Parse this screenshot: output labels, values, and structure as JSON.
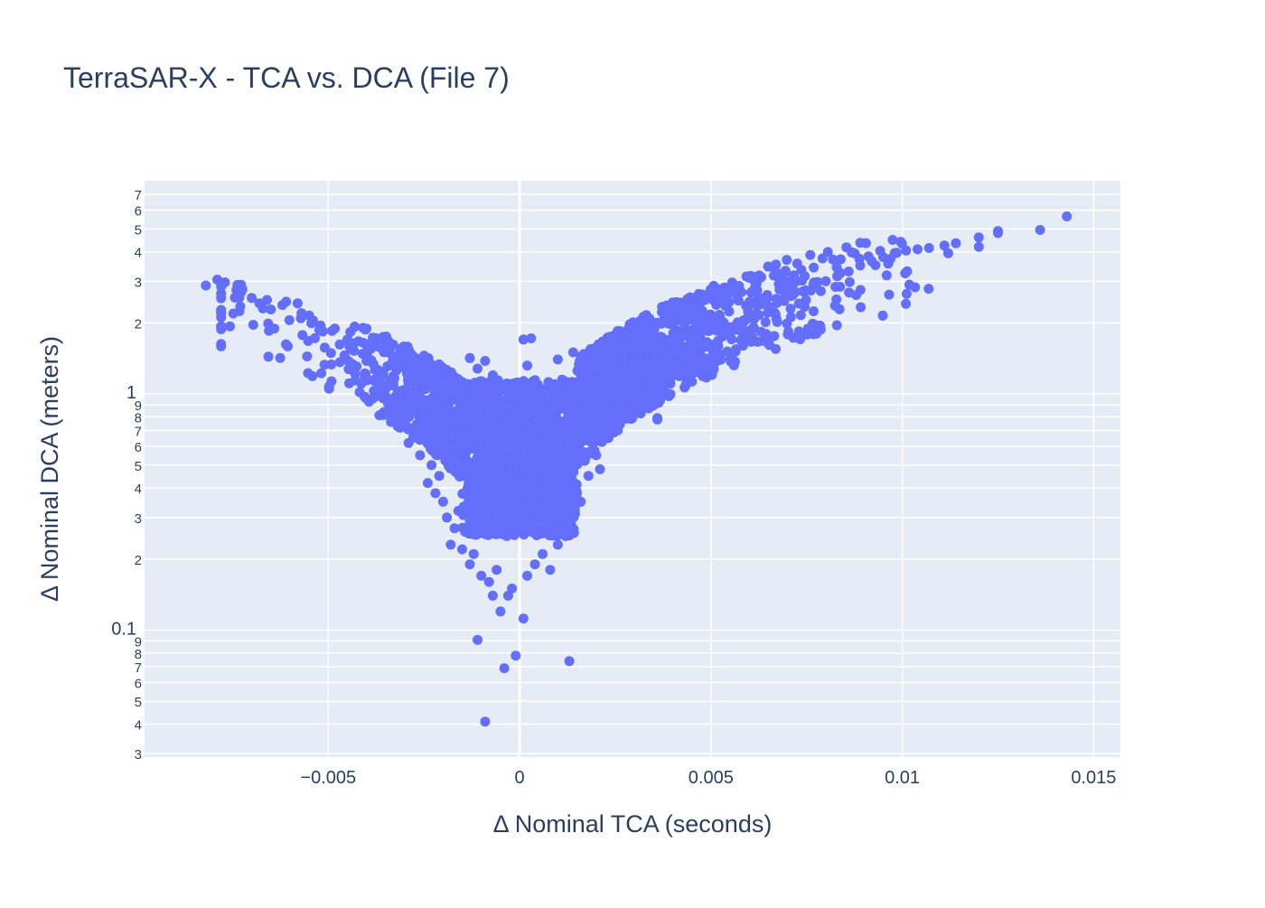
{
  "chart_data": {
    "type": "scatter",
    "title": "TerraSAR-X - TCA vs. DCA (File 7)",
    "xlabel": "Δ Nominal TCA (seconds)",
    "ylabel": "Δ Nominal DCA (meters)",
    "x_scale": "linear",
    "y_scale": "log",
    "xlim": [
      -0.0098,
      0.0157
    ],
    "ylim": [
      0.029,
      8.0
    ],
    "x_ticks": [
      {
        "value": -0.005,
        "label": "−0.005"
      },
      {
        "value": 0,
        "label": "0"
      },
      {
        "value": 0.005,
        "label": "0.005"
      },
      {
        "value": 0.01,
        "label": "0.01"
      },
      {
        "value": 0.015,
        "label": "0.015"
      }
    ],
    "y_major_ticks": [
      {
        "value": 0.1,
        "label": "0.1"
      },
      {
        "value": 1,
        "label": "1"
      }
    ],
    "y_minor_ticks": [
      {
        "value": 0.03,
        "label": "3"
      },
      {
        "value": 0.04,
        "label": "4"
      },
      {
        "value": 0.05,
        "label": "5"
      },
      {
        "value": 0.06,
        "label": "6"
      },
      {
        "value": 0.07,
        "label": "7"
      },
      {
        "value": 0.08,
        "label": "8"
      },
      {
        "value": 0.09,
        "label": "9"
      },
      {
        "value": 0.2,
        "label": "2"
      },
      {
        "value": 0.3,
        "label": "3"
      },
      {
        "value": 0.4,
        "label": "4"
      },
      {
        "value": 0.5,
        "label": "5"
      },
      {
        "value": 0.6,
        "label": "6"
      },
      {
        "value": 0.7,
        "label": "7"
      },
      {
        "value": 0.8,
        "label": "8"
      },
      {
        "value": 0.9,
        "label": "9"
      },
      {
        "value": 2,
        "label": "2"
      },
      {
        "value": 3,
        "label": "3"
      },
      {
        "value": 4,
        "label": "4"
      },
      {
        "value": 5,
        "label": "5"
      },
      {
        "value": 6,
        "label": "6"
      },
      {
        "value": 7,
        "label": "7"
      }
    ],
    "grid": true,
    "legend": "none",
    "colors": {
      "marker": "#636efa",
      "plot_bg": "#e5ecf6",
      "grid": "#ffffff",
      "text": "#2a3f5f"
    },
    "series": [
      {
        "points": [
          [
            -0.0082,
            2.88
          ],
          [
            -0.0079,
            3.05
          ],
          [
            -0.0077,
            2.97
          ],
          [
            -0.0078,
            2.66
          ],
          [
            -0.0074,
            2.76
          ],
          [
            -0.0073,
            2.35
          ],
          [
            -0.007,
            2.55
          ],
          [
            -0.0068,
            2.42
          ],
          [
            -0.0066,
            2.5
          ],
          [
            -0.0065,
            2.28
          ],
          [
            -0.0062,
            2.38
          ],
          [
            -0.0061,
            2.46
          ],
          [
            -0.0058,
            2.42
          ],
          [
            -0.0057,
            2.2
          ],
          [
            -0.0055,
            2.15
          ],
          [
            -0.0054,
            2.05
          ],
          [
            -0.0052,
            1.95
          ],
          [
            -0.0051,
            1.33
          ],
          [
            -0.0049,
            1.85
          ],
          [
            -0.0047,
            1.62
          ],
          [
            -0.0045,
            1.7
          ],
          [
            -0.0044,
            1.55
          ],
          [
            -0.0043,
            1.22
          ],
          [
            -0.0041,
            1.48
          ],
          [
            -0.004,
            1.38
          ],
          [
            -0.0038,
            1.15
          ],
          [
            -0.0037,
            1.25
          ],
          [
            -0.0035,
            1.05
          ],
          [
            -0.0034,
            0.88
          ],
          [
            -0.0033,
            1.1
          ],
          [
            -0.0031,
            0.8
          ],
          [
            -0.003,
            0.95
          ],
          [
            -0.0029,
            0.62
          ],
          [
            -0.0028,
            0.7
          ],
          [
            -0.0026,
            0.55
          ],
          [
            -0.0025,
            0.78
          ],
          [
            -0.0024,
            0.42
          ],
          [
            -0.0023,
            0.5
          ],
          [
            -0.0022,
            0.38
          ],
          [
            -0.0021,
            0.45
          ],
          [
            -0.002,
            0.35
          ],
          [
            -0.0019,
            0.3
          ],
          [
            -0.0018,
            0.23
          ],
          [
            -0.0017,
            0.27
          ],
          [
            -0.0016,
            0.32
          ],
          [
            -0.0015,
            0.22
          ],
          [
            -0.0014,
            0.26
          ],
          [
            -0.0013,
            0.19
          ],
          [
            -0.0012,
            0.21
          ],
          [
            -0.0011,
            0.091
          ],
          [
            -0.001,
            0.17
          ],
          [
            -0.0009,
            0.041
          ],
          [
            -0.0008,
            0.16
          ],
          [
            -0.0007,
            0.14
          ],
          [
            -0.0006,
            0.18
          ],
          [
            -0.0005,
            0.12
          ],
          [
            -0.0004,
            0.069
          ],
          [
            -0.0003,
            0.14
          ],
          [
            -0.0002,
            0.15
          ],
          [
            -0.0001,
            0.078
          ],
          [
            0.0001,
            0.112
          ],
          [
            0.0002,
            0.17
          ],
          [
            0.0004,
            0.19
          ],
          [
            0.0006,
            0.21
          ],
          [
            0.0008,
            0.18
          ],
          [
            0.001,
            0.23
          ],
          [
            0.0012,
            0.25
          ],
          [
            0.0013,
            0.074
          ],
          [
            0.0014,
            0.26
          ],
          [
            0.0015,
            0.38
          ],
          [
            0.0016,
            0.35
          ],
          [
            0.0018,
            0.45
          ],
          [
            0.002,
            0.55
          ],
          [
            0.0021,
            0.48
          ],
          [
            0.0023,
            0.68
          ],
          [
            0.0025,
            0.72
          ],
          [
            0.0027,
            0.82
          ],
          [
            0.0029,
            0.85
          ],
          [
            0.0032,
            0.9
          ],
          [
            0.0035,
            0.95
          ],
          [
            0.0036,
            0.78
          ],
          [
            0.0038,
            1.15
          ],
          [
            0.0041,
            1.25
          ],
          [
            0.0044,
            1.35
          ],
          [
            0.0047,
            1.45
          ],
          [
            0.005,
            1.6
          ],
          [
            0.0053,
            1.75
          ],
          [
            0.0056,
            1.92
          ],
          [
            0.0059,
            2.05
          ],
          [
            0.0062,
            2.2
          ],
          [
            0.0065,
            2.35
          ],
          [
            0.0068,
            2.5
          ],
          [
            0.0071,
            2.6
          ],
          [
            0.0074,
            2.72
          ],
          [
            0.0077,
            2.85
          ],
          [
            0.008,
            3.0
          ],
          [
            0.0083,
            3.15
          ],
          [
            0.0086,
            3.3
          ],
          [
            0.0089,
            3.5
          ],
          [
            0.0092,
            3.65
          ],
          [
            0.0095,
            3.8
          ],
          [
            0.0098,
            3.95
          ],
          [
            0.0101,
            4.05
          ],
          [
            0.0104,
            4.1
          ],
          [
            0.0107,
            4.15
          ],
          [
            0.0111,
            4.25
          ],
          [
            0.0114,
            4.35
          ],
          [
            0.012,
            4.6
          ],
          [
            0.012,
            4.2
          ],
          [
            0.0125,
            4.8
          ],
          [
            0.0125,
            4.9
          ],
          [
            0.0136,
            4.95
          ],
          [
            0.0143,
            5.65
          ],
          [
            0.0003,
            1.72
          ],
          [
            0.0001,
            1.7
          ],
          [
            -0.0013,
            1.42
          ],
          [
            -0.0011,
            1.28
          ],
          [
            -0.0009,
            1.38
          ],
          [
            -0.0007,
            1.2
          ],
          [
            0.0002,
            1.32
          ],
          [
            0.001,
            1.4
          ],
          [
            0.0014,
            1.5
          ],
          [
            0.0036,
            0.79
          ],
          [
            0.0022,
            1.05
          ],
          [
            0.0026,
            1.1
          ],
          [
            -0.0018,
            1.18
          ],
          [
            -0.0022,
            1.3
          ]
        ]
      }
    ]
  }
}
